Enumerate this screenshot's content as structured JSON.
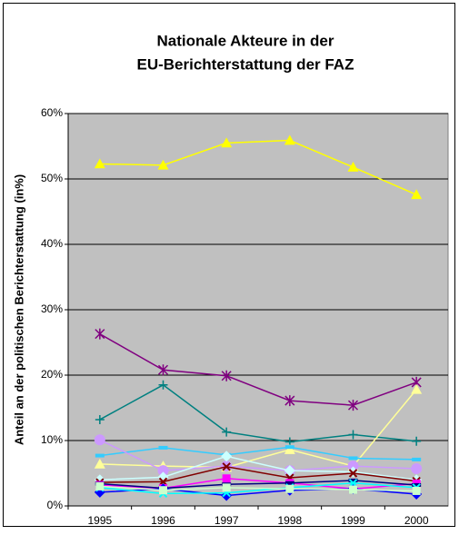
{
  "chart_data": {
    "type": "line",
    "title": [
      "Nationale Akteure in der",
      "EU-Berichterstattung der FAZ"
    ],
    "y_label": "Anteil an der politischen Berichterstattung (in%)",
    "categories": [
      "1995",
      "1996",
      "1997",
      "1998",
      "1999",
      "2000"
    ],
    "ylim": [
      0,
      60
    ],
    "yticks": [
      {
        "value": 0,
        "label": "0%"
      },
      {
        "value": 10,
        "label": "10%"
      },
      {
        "value": 20,
        "label": "20%"
      },
      {
        "value": 30,
        "label": "30%"
      },
      {
        "value": 40,
        "label": "40%"
      },
      {
        "value": 50,
        "label": "50%"
      },
      {
        "value": 60,
        "label": "60%"
      }
    ],
    "grid": true,
    "series": [
      {
        "color": "#ffff00",
        "marker": "triangle",
        "values": [
          52.3,
          52.1,
          55.5,
          55.9,
          51.8,
          47.6
        ]
      },
      {
        "color": "#800080",
        "marker": "asterisk",
        "values": [
          26.3,
          20.8,
          19.9,
          16.1,
          15.4,
          18.9
        ]
      },
      {
        "color": "#008080",
        "marker": "plus",
        "values": [
          13.2,
          18.5,
          11.3,
          9.8,
          10.9,
          9.9
        ]
      },
      {
        "color": "#ffff99",
        "marker": "triangle",
        "values": [
          6.4,
          6.1,
          5.9,
          8.6,
          6.1,
          17.8
        ]
      },
      {
        "color": "#33ccff",
        "marker": "dash",
        "values": [
          7.7,
          8.9,
          7.8,
          9.0,
          7.3,
          7.1
        ]
      },
      {
        "color": "#cc99ff",
        "marker": "circle",
        "values": [
          10.1,
          5.4,
          6.1,
          5.4,
          6.1,
          5.7
        ]
      },
      {
        "color": "#ccffff",
        "marker": "diamond",
        "values": [
          4.0,
          4.4,
          7.6,
          5.4,
          5.2,
          4.0
        ]
      },
      {
        "color": "#800000",
        "marker": "x",
        "values": [
          3.6,
          3.7,
          6.0,
          4.3,
          5.0,
          3.8
        ]
      },
      {
        "color": "#ff00ff",
        "marker": "square",
        "values": [
          3.2,
          2.7,
          4.2,
          3.5,
          2.6,
          3.4
        ]
      },
      {
        "color": "#000080",
        "marker": "dash",
        "values": [
          3.4,
          2.7,
          3.3,
          3.5,
          3.9,
          3.2
        ]
      },
      {
        "color": "#0000ff",
        "marker": "diamond",
        "values": [
          2.1,
          2.6,
          1.6,
          2.4,
          2.6,
          1.8
        ]
      },
      {
        "color": "#00ffff",
        "marker": "x",
        "values": [
          2.8,
          1.9,
          2.0,
          2.8,
          3.5,
          2.8
        ]
      },
      {
        "color": "#ccffcc",
        "marker": "square",
        "values": [
          3.0,
          2.4,
          2.8,
          2.6,
          2.5,
          2.3
        ]
      }
    ]
  }
}
